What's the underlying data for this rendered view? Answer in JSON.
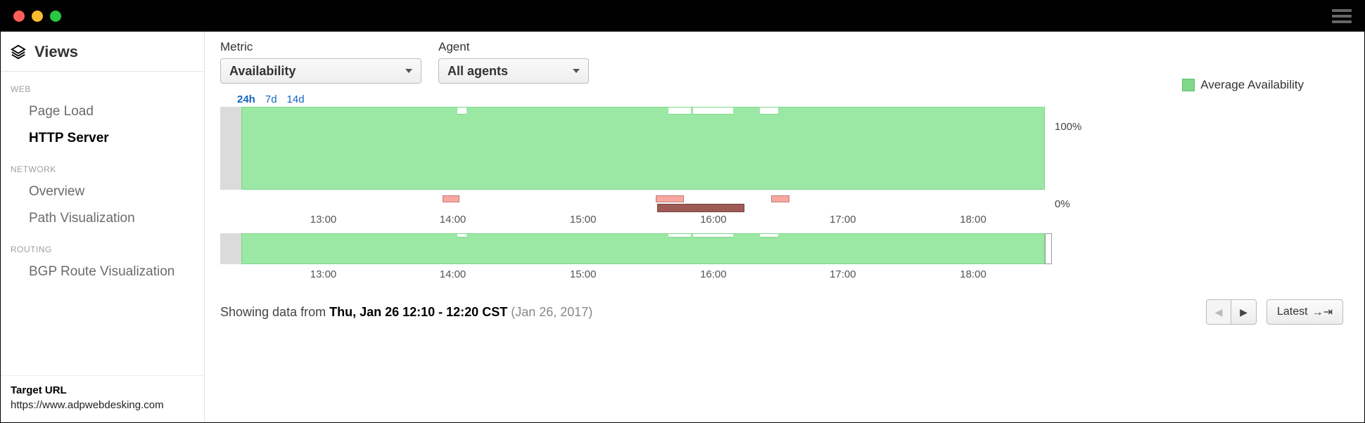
{
  "titlebar": {
    "dot_colors": [
      "#ff5f57",
      "#febc2e",
      "#28c840"
    ]
  },
  "sidebar": {
    "title": "Views",
    "sections": [
      {
        "label": "WEB",
        "items": [
          {
            "key": "page-load",
            "label": "Page Load",
            "active": false
          },
          {
            "key": "http-server",
            "label": "HTTP Server",
            "active": true
          }
        ]
      },
      {
        "label": "NETWORK",
        "items": [
          {
            "key": "overview",
            "label": "Overview",
            "active": false
          },
          {
            "key": "path-viz",
            "label": "Path Visualization",
            "active": false
          }
        ]
      },
      {
        "label": "ROUTING",
        "items": [
          {
            "key": "bgp",
            "label": "BGP Route Visualization",
            "active": false
          }
        ]
      }
    ],
    "footer_label": "Target URL",
    "footer_url": "https://www.adpwebdesking.com"
  },
  "controls": {
    "metric_label": "Metric",
    "metric_value": "Availability",
    "agent_label": "Agent",
    "agent_value": "All agents"
  },
  "chart": {
    "range_options": [
      "24h",
      "7d",
      "14d"
    ],
    "range_selected": "24h",
    "legend_label": "Average Availability",
    "y_max_label": "100%",
    "y_min_label": "0%",
    "green_color": "#9be7a4",
    "green_border": "#7fd88a",
    "grey_leader_width_pct": 2.6,
    "axis_ticks": [
      {
        "label": "13:00",
        "pct": 12.5
      },
      {
        "label": "14:00",
        "pct": 28.2
      },
      {
        "label": "15:00",
        "pct": 44.0
      },
      {
        "label": "16:00",
        "pct": 59.8
      },
      {
        "label": "17:00",
        "pct": 75.5
      },
      {
        "label": "18:00",
        "pct": 91.3
      }
    ],
    "dips": [
      {
        "left_pct": 26.8,
        "width_pct": 1.2
      },
      {
        "left_pct": 53.2,
        "width_pct": 2.8
      },
      {
        "left_pct": 56.2,
        "width_pct": 5.0
      },
      {
        "left_pct": 64.6,
        "width_pct": 2.2
      }
    ],
    "event_markers": [
      {
        "type": "pink",
        "left_pct": 27.0,
        "width_pct": 2.0
      },
      {
        "type": "purple",
        "left_pct": 53.2,
        "width_pct": 1.6
      },
      {
        "type": "pink",
        "left_pct": 52.8,
        "width_pct": 3.4
      },
      {
        "type": "darkred",
        "left_pct": 53.0,
        "width_pct": 10.6
      },
      {
        "type": "pink",
        "left_pct": 66.8,
        "width_pct": 2.2
      }
    ]
  },
  "footer": {
    "showing_prefix": "Showing data from ",
    "showing_bold": "Thu, Jan 26 12:10 - 12:20 CST",
    "showing_dim": " (Jan 26, 2017)",
    "latest_label": "Latest"
  }
}
